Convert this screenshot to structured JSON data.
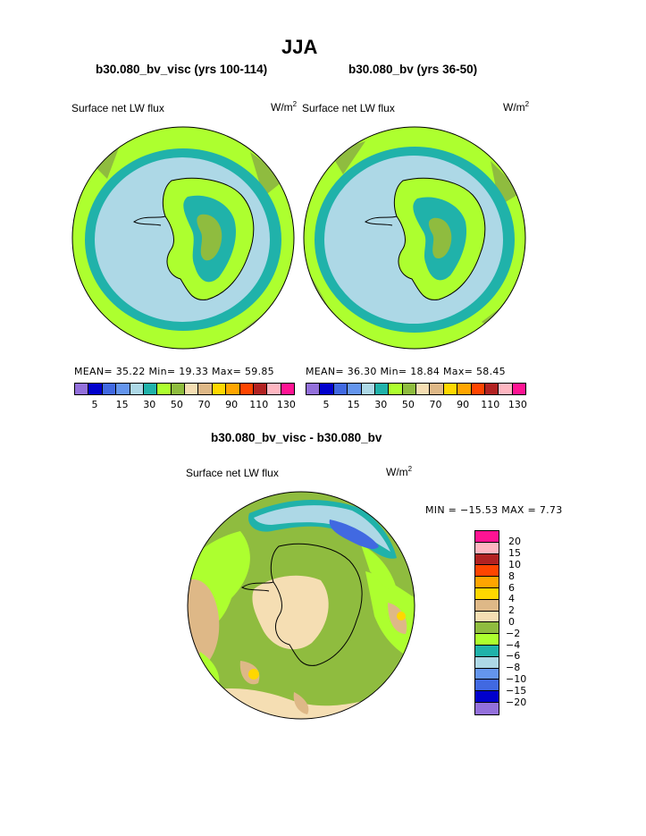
{
  "header": {
    "main_title": "JJA"
  },
  "panels": [
    {
      "title": "b30.080_bv_visc (yrs 100-114)",
      "variable": "Surface net LW flux",
      "units_base": "W/m",
      "units_sup": "2",
      "stats": "MEAN=   35.22   Min=   19.33   Max=   59.85"
    },
    {
      "title": "b30.080_bv (yrs 36-50)",
      "variable": "Surface net LW flux",
      "units_base": "W/m",
      "units_sup": "2",
      "stats": "MEAN=   36.30   Min=   18.84   Max=   58.45"
    }
  ],
  "colorbar": {
    "colors": [
      "#9370db",
      "#0000cd",
      "#4169e1",
      "#6495ed",
      "#add8e6",
      "#20b2aa",
      "#adff2f",
      "#8fbc3f",
      "#f5deb3",
      "#deb887",
      "#ffd700",
      "#ffa500",
      "#ff4500",
      "#b22222",
      "#ffb6c1",
      "#ff1493"
    ],
    "ticks": [
      "5",
      "15",
      "30",
      "50",
      "70",
      "90",
      "110",
      "130"
    ]
  },
  "diff": {
    "title": "b30.080_bv_visc - b30.080_bv",
    "variable": "Surface net LW flux",
    "units_base": "W/m",
    "units_sup": "2",
    "minmax": "MIN = −15.53 MAX =    7.73",
    "colors": [
      "#ff1493",
      "#ffb6c1",
      "#b22222",
      "#ff4500",
      "#ffa500",
      "#ffd700",
      "#deb887",
      "#f5deb3",
      "#8fbc3f",
      "#adff2f",
      "#20b2aa",
      "#add8e6",
      "#6495ed",
      "#4169e1",
      "#0000cd",
      "#9370db"
    ],
    "labels": [
      "20",
      "15",
      "10",
      "8",
      "6",
      "4",
      "2",
      "0",
      "−2",
      "−4",
      "−6",
      "−8",
      "−10",
      "−15",
      "−20"
    ]
  }
}
